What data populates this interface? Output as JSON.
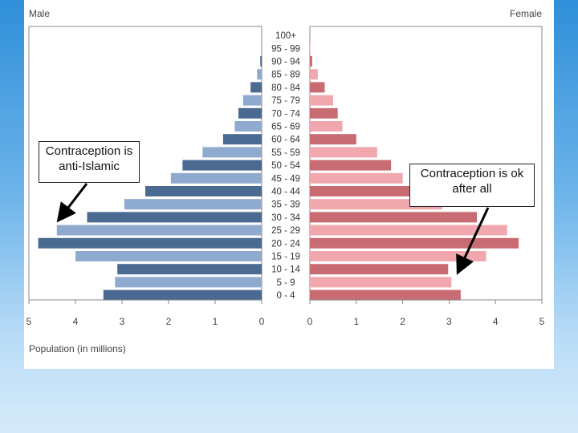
{
  "chart_data": {
    "type": "bar",
    "categories": [
      "100+",
      "95 - 99",
      "90 - 94",
      "85 - 89",
      "80 - 84",
      "75 - 79",
      "70 - 74",
      "65 - 69",
      "60 - 64",
      "55 - 59",
      "50 - 54",
      "45 - 49",
      "40 - 44",
      "35 - 39",
      "30 - 34",
      "25 - 29",
      "20 - 24",
      "15 - 19",
      "10 - 14",
      "5 - 9",
      "0 - 4"
    ],
    "series": [
      {
        "name": "Male",
        "values": [
          0.0,
          0.01,
          0.03,
          0.1,
          0.24,
          0.4,
          0.5,
          0.58,
          0.83,
          1.27,
          1.7,
          1.95,
          2.5,
          2.95,
          3.75,
          4.4,
          4.8,
          4.0,
          3.1,
          3.15,
          3.4
        ]
      },
      {
        "name": "Female",
        "values": [
          0.0,
          0.01,
          0.05,
          0.17,
          0.32,
          0.5,
          0.6,
          0.7,
          1.0,
          1.45,
          1.75,
          2.0,
          2.3,
          2.85,
          3.6,
          4.25,
          4.5,
          3.8,
          2.98,
          3.05,
          3.25
        ]
      }
    ],
    "xticks": [
      "5",
      "4",
      "3",
      "2",
      "1",
      "0",
      "0",
      "1",
      "2",
      "3",
      "4",
      "5"
    ],
    "xlim": [
      0,
      5
    ],
    "xlabel": "Population (in millions)",
    "legend": {
      "left": "Male",
      "right": "Female"
    },
    "colors": {
      "male_dark": "#4a6a91",
      "male_light": "#8eabcf",
      "female_dark": "#c96b73",
      "female_light": "#f0a8ae",
      "label_bg": "#ffffff"
    }
  },
  "annotations": {
    "left": "Contraception is anti-Islamic",
    "right": "Contraception is ok after all"
  }
}
